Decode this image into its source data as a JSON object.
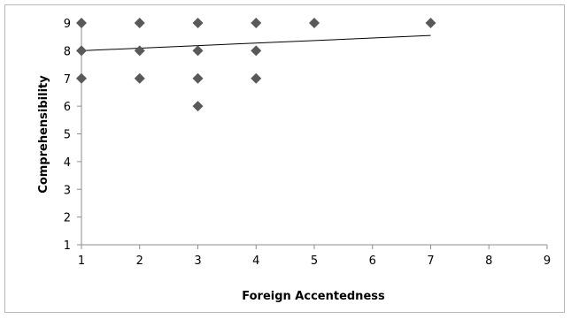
{
  "chart_data": {
    "type": "scatter",
    "title": "",
    "xlabel": "Foreign Accentedness",
    "ylabel": "Comprehensibility",
    "xlim": [
      1,
      9
    ],
    "ylim": [
      1,
      9
    ],
    "xticks": [
      "1",
      "2",
      "3",
      "4",
      "5",
      "6",
      "7",
      "8",
      "9"
    ],
    "yticks": [
      "1",
      "2",
      "3",
      "4",
      "5",
      "6",
      "7",
      "8",
      "9"
    ],
    "grid": false,
    "legend": "none",
    "marker": "diamond",
    "marker_color": "#595959",
    "trendline_color": "#000000",
    "axis_color": "#8c8c8c",
    "points": [
      {
        "x": 1,
        "y": 9
      },
      {
        "x": 2,
        "y": 9
      },
      {
        "x": 3,
        "y": 9
      },
      {
        "x": 4,
        "y": 9
      },
      {
        "x": 5,
        "y": 9
      },
      {
        "x": 7,
        "y": 9
      },
      {
        "x": 1,
        "y": 8
      },
      {
        "x": 2,
        "y": 8
      },
      {
        "x": 3,
        "y": 8
      },
      {
        "x": 4,
        "y": 8
      },
      {
        "x": 1,
        "y": 7
      },
      {
        "x": 2,
        "y": 7
      },
      {
        "x": 3,
        "y": 7
      },
      {
        "x": 4,
        "y": 7
      },
      {
        "x": 3,
        "y": 6
      }
    ],
    "trendline": {
      "x": [
        1,
        7
      ],
      "y": [
        8.0,
        8.55
      ]
    }
  }
}
